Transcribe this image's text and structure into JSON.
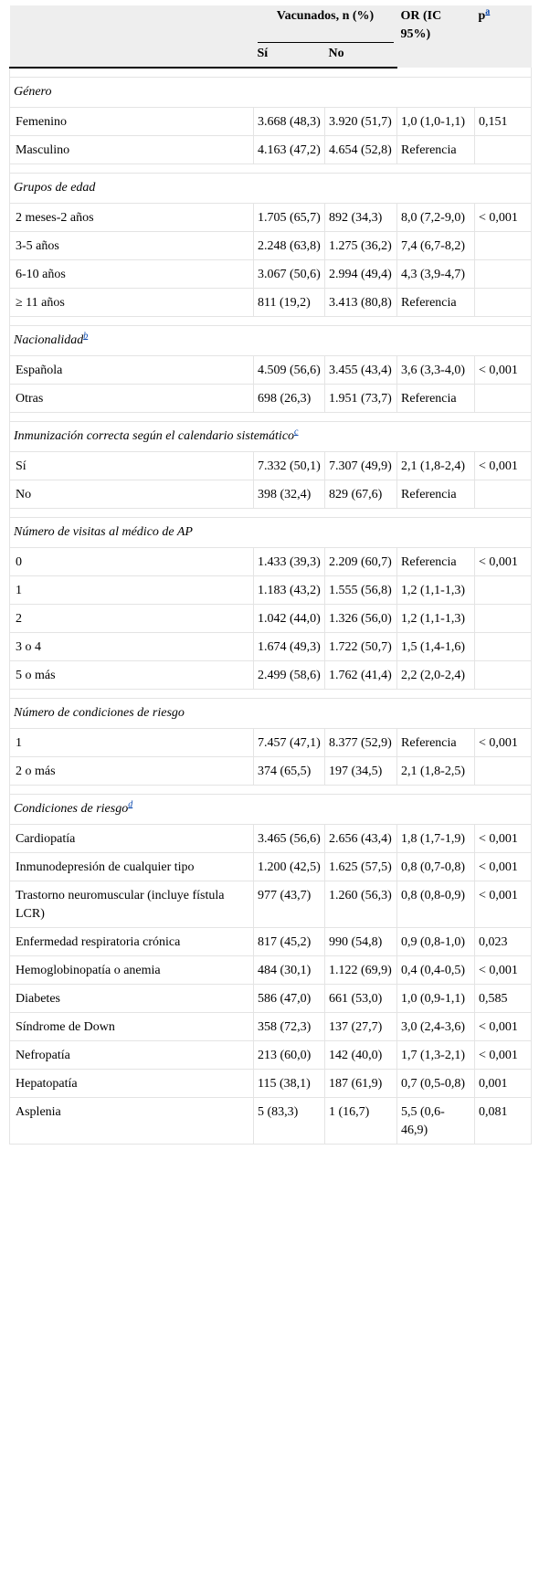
{
  "header": {
    "vacunados": "Vacunados, n (%)",
    "si": "Sí",
    "no": "No",
    "or": "OR (IC 95%)",
    "p": "p",
    "p_sup": "a"
  },
  "sections": [
    {
      "title": "Género",
      "sup": "",
      "rows": [
        {
          "label": "Femenino",
          "si": "3.668 (48,3)",
          "no": "3.920 (51,7)",
          "or": "1,0 (1,0-1,1)",
          "p": "0,151"
        },
        {
          "label": "Masculino",
          "si": "4.163 (47,2)",
          "no": "4.654 (52,8)",
          "or": "Referencia",
          "p": ""
        }
      ]
    },
    {
      "title": "Grupos de edad",
      "sup": "",
      "rows": [
        {
          "label": "2 meses-2 años",
          "si": "1.705 (65,7)",
          "no": "892 (34,3)",
          "or": "8,0 (7,2-9,0)",
          "p": "< 0,001"
        },
        {
          "label": "3-5 años",
          "si": "2.248 (63,8)",
          "no": "1.275 (36,2)",
          "or": "7,4 (6,7-8,2)",
          "p": ""
        },
        {
          "label": "6-10 años",
          "si": "3.067 (50,6)",
          "no": "2.994 (49,4)",
          "or": "4,3 (3,9-4,7)",
          "p": ""
        },
        {
          "label": "≥ 11 años",
          "si": "811 (19,2)",
          "no": "3.413 (80,8)",
          "or": "Referencia",
          "p": ""
        }
      ]
    },
    {
      "title": "Nacionalidad",
      "sup": "b",
      "rows": [
        {
          "label": "Española",
          "si": "4.509 (56,6)",
          "no": "3.455 (43,4)",
          "or": "3,6 (3,3-4,0)",
          "p": "< 0,001"
        },
        {
          "label": "Otras",
          "si": "698 (26,3)",
          "no": "1.951 (73,7)",
          "or": "Referencia",
          "p": ""
        }
      ]
    },
    {
      "title": "Inmunización correcta según el calendario sistemático",
      "sup": "c",
      "rows": [
        {
          "label": "Sí",
          "si": "7.332 (50,1)",
          "no": "7.307 (49,9)",
          "or": "2,1 (1,8-2,4)",
          "p": "< 0,001"
        },
        {
          "label": "No",
          "si": "398 (32,4)",
          "no": "829 (67,6)",
          "or": "Referencia",
          "p": ""
        }
      ]
    },
    {
      "title": "Número de visitas al médico de AP",
      "sup": "",
      "rows": [
        {
          "label": "0",
          "si": "1.433 (39,3)",
          "no": "2.209 (60,7)",
          "or": "Referencia",
          "p": "< 0,001"
        },
        {
          "label": "1",
          "si": "1.183 (43,2)",
          "no": "1.555 (56,8)",
          "or": "1,2 (1,1-1,3)",
          "p": ""
        },
        {
          "label": "2",
          "si": "1.042 (44,0)",
          "no": "1.326 (56,0)",
          "or": "1,2 (1,1-1,3)",
          "p": ""
        },
        {
          "label": "3 o 4",
          "si": "1.674 (49,3)",
          "no": "1.722 (50,7)",
          "or": "1,5 (1,4-1,6)",
          "p": ""
        },
        {
          "label": "5 o más",
          "si": "2.499 (58,6)",
          "no": "1.762 (41,4)",
          "or": "2,2 (2,0-2,4)",
          "p": ""
        }
      ]
    },
    {
      "title": "Número de condiciones de riesgo",
      "sup": "",
      "rows": [
        {
          "label": "1",
          "si": "7.457 (47,1)",
          "no": "8.377 (52,9)",
          "or": "Referencia",
          "p": "< 0,001"
        },
        {
          "label": "2 o más",
          "si": "374 (65,5)",
          "no": "197 (34,5)",
          "or": "2,1 (1,8-2,5)",
          "p": ""
        }
      ]
    },
    {
      "title": "Condiciones de riesgo",
      "sup": "d",
      "rows": [
        {
          "label": "Cardiopatía",
          "si": "3.465 (56,6)",
          "no": "2.656 (43,4)",
          "or": "1,8 (1,7-1,9)",
          "p": "< 0,001"
        },
        {
          "label": "Inmunodepresión de cualquier tipo",
          "si": "1.200 (42,5)",
          "no": "1.625 (57,5)",
          "or": "0,8 (0,7-0,8)",
          "p": "< 0,001"
        },
        {
          "label": "Trastorno neuromuscular (incluye fístula LCR)",
          "si": "977 (43,7)",
          "no": "1.260 (56,3)",
          "or": "0,8 (0,8-0,9)",
          "p": "< 0,001"
        },
        {
          "label": "Enfermedad respiratoria crónica",
          "si": "817 (45,2)",
          "no": "990 (54,8)",
          "or": "0,9 (0,8-1,0)",
          "p": "0,023"
        },
        {
          "label": "Hemoglobinopatía o anemia",
          "si": "484 (30,1)",
          "no": "1.122 (69,9)",
          "or": "0,4 (0,4-0,5)",
          "p": "< 0,001"
        },
        {
          "label": "Diabetes",
          "si": "586 (47,0)",
          "no": "661 (53,0)",
          "or": "1,0 (0,9-1,1)",
          "p": "0,585"
        },
        {
          "label": "Síndrome de Down",
          "si": "358 (72,3)",
          "no": "137 (27,7)",
          "or": "3,0 (2,4-3,6)",
          "p": "< 0,001"
        },
        {
          "label": "Nefropatía",
          "si": "213 (60,0)",
          "no": "142 (40,0)",
          "or": "1,7 (1,3-2,1)",
          "p": "< 0,001"
        },
        {
          "label": "Hepatopatía",
          "si": "115 (38,1)",
          "no": "187 (61,9)",
          "or": "0,7 (0,5-0,8)",
          "p": "0,001"
        },
        {
          "label": "Asplenia",
          "si": "5 (83,3)",
          "no": "1 (16,7)",
          "or": "5,5 (0,6-46,9)",
          "p": "0,081"
        }
      ]
    }
  ]
}
